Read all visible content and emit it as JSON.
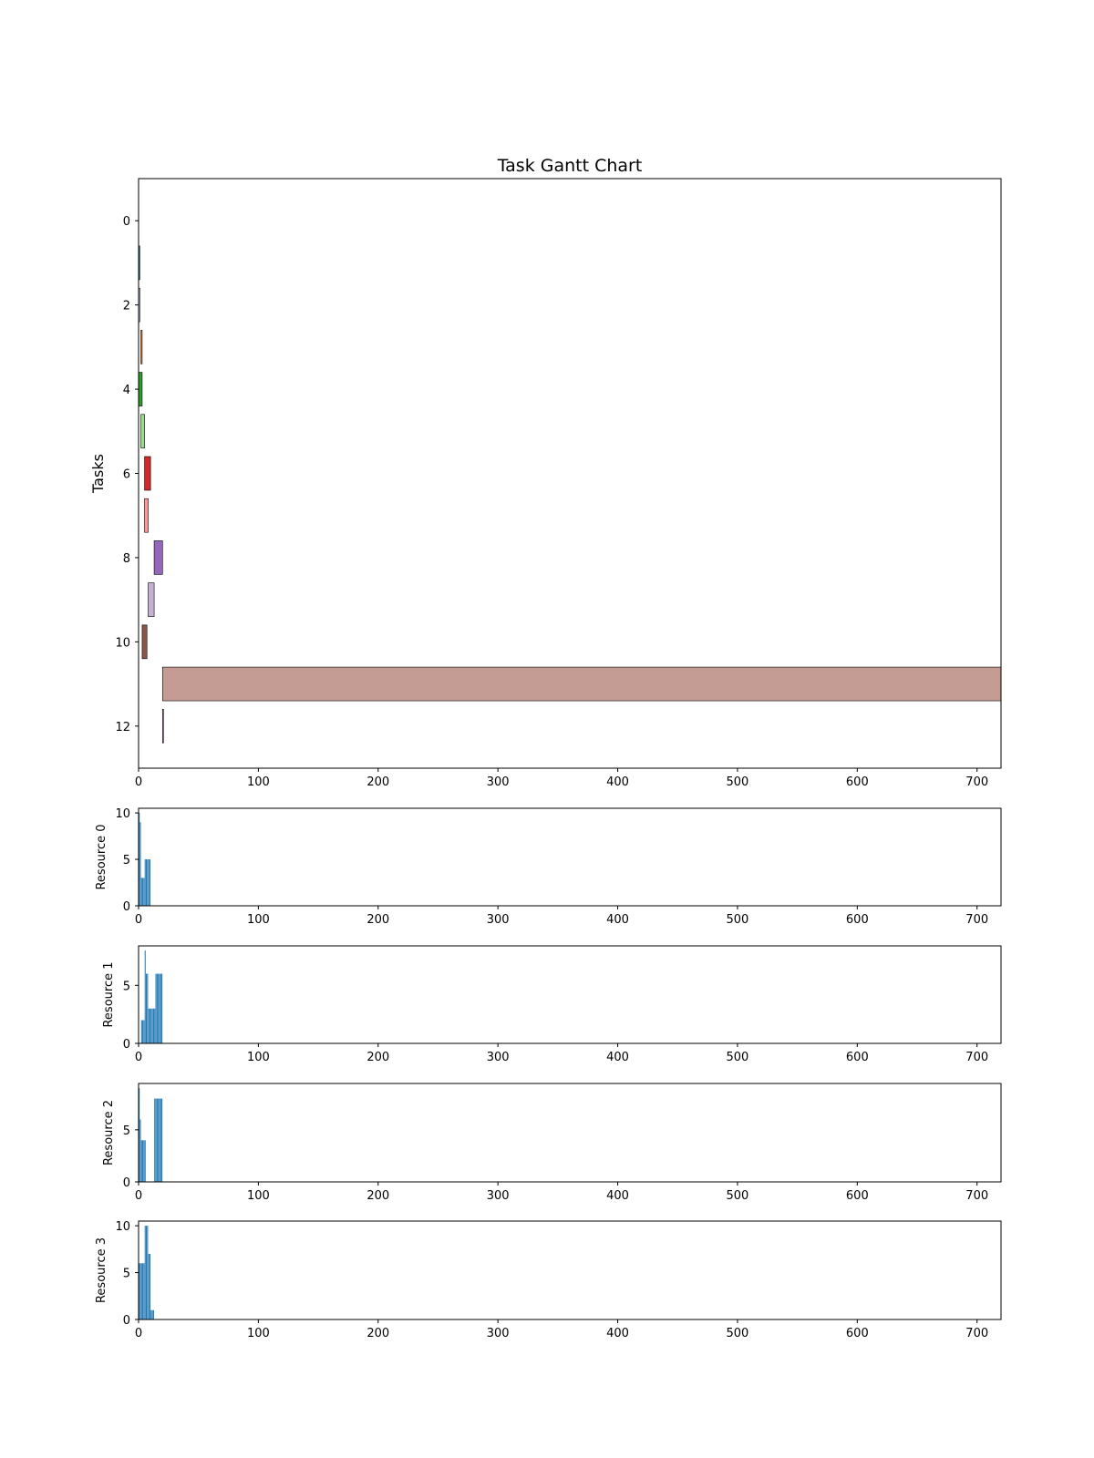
{
  "chart_data": [
    {
      "type": "gantt",
      "title": "Task Gantt Chart",
      "xlabel": "",
      "ylabel": "Tasks",
      "xlim": [
        0,
        720
      ],
      "ylim": [
        13,
        -1
      ],
      "x_ticks": [
        0,
        100,
        200,
        300,
        400,
        500,
        600,
        700
      ],
      "y_ticks": [
        0,
        2,
        4,
        6,
        8,
        10,
        12
      ],
      "tasks": [
        {
          "task": 1,
          "start": 0,
          "end": 1,
          "color": "#1f77b4"
        },
        {
          "task": 2,
          "start": 0,
          "end": 1,
          "color": "#aec7e8"
        },
        {
          "task": 3,
          "start": 2,
          "end": 3,
          "color": "#ff7f0e"
        },
        {
          "task": 4,
          "start": 0,
          "end": 3,
          "color": "#2ca02c"
        },
        {
          "task": 5,
          "start": 2,
          "end": 5,
          "color": "#98df8a"
        },
        {
          "task": 6,
          "start": 5,
          "end": 10,
          "color": "#d62728"
        },
        {
          "task": 7,
          "start": 5,
          "end": 8,
          "color": "#ff9896"
        },
        {
          "task": 8,
          "start": 13,
          "end": 20,
          "color": "#9467bd"
        },
        {
          "task": 9,
          "start": 8,
          "end": 13,
          "color": "#c5b0d5"
        },
        {
          "task": 10,
          "start": 3,
          "end": 7,
          "color": "#8c564b"
        },
        {
          "task": 11,
          "start": 20,
          "end": 720,
          "color": "#c49c94"
        },
        {
          "task": 12,
          "start": 20,
          "end": 20.5,
          "color": "#e377c2"
        }
      ]
    },
    {
      "type": "bar",
      "ylabel": "Resource 0",
      "xlim": [
        0,
        720
      ],
      "ylim": [
        0,
        10.5
      ],
      "x_ticks": [
        0,
        100,
        200,
        300,
        400,
        500,
        600,
        700
      ],
      "y_ticks": [
        0,
        5,
        10
      ],
      "x": [
        0,
        1,
        2,
        3,
        4,
        5,
        6,
        7,
        8,
        9
      ],
      "values": [
        10,
        9,
        3,
        3,
        3,
        5,
        5,
        5,
        5,
        5
      ],
      "color": "#1f77b4"
    },
    {
      "type": "bar",
      "ylabel": "Resource 1",
      "xlim": [
        0,
        720
      ],
      "ylim": [
        0,
        8.4
      ],
      "x_ticks": [
        0,
        100,
        200,
        300,
        400,
        500,
        600,
        700
      ],
      "y_ticks": [
        0,
        5
      ],
      "x": [
        2,
        3,
        4,
        5,
        6,
        7,
        8,
        9,
        10,
        11,
        12,
        13,
        14,
        15,
        16,
        17,
        18,
        19
      ],
      "values": [
        2,
        2,
        2,
        8,
        6,
        6,
        3,
        3,
        3,
        3,
        3,
        3,
        6,
        6,
        6,
        6,
        6,
        6
      ],
      "color": "#1f77b4"
    },
    {
      "type": "bar",
      "ylabel": "Resource 2",
      "xlim": [
        0,
        720
      ],
      "ylim": [
        0,
        9.45
      ],
      "x_ticks": [
        0,
        100,
        200,
        300,
        400,
        500,
        600,
        700
      ],
      "y_ticks": [
        0,
        5
      ],
      "x": [
        0,
        1,
        2,
        3,
        4,
        5,
        13,
        14,
        15,
        16,
        17,
        18,
        19
      ],
      "values": [
        9,
        6,
        4,
        4,
        4,
        4,
        8,
        8,
        8,
        8,
        8,
        8,
        8
      ],
      "color": "#1f77b4"
    },
    {
      "type": "bar",
      "ylabel": "Resource 3",
      "xlim": [
        0,
        720
      ],
      "ylim": [
        0,
        10.5
      ],
      "x_ticks": [
        0,
        100,
        200,
        300,
        400,
        500,
        600,
        700
      ],
      "y_ticks": [
        0,
        5,
        10
      ],
      "x": [
        0,
        1,
        2,
        3,
        4,
        5,
        6,
        7,
        8,
        9,
        10,
        11,
        12
      ],
      "values": [
        6,
        6,
        6,
        6,
        6,
        10,
        10,
        10,
        7,
        7,
        1,
        1,
        1
      ],
      "color": "#1f77b4"
    }
  ]
}
